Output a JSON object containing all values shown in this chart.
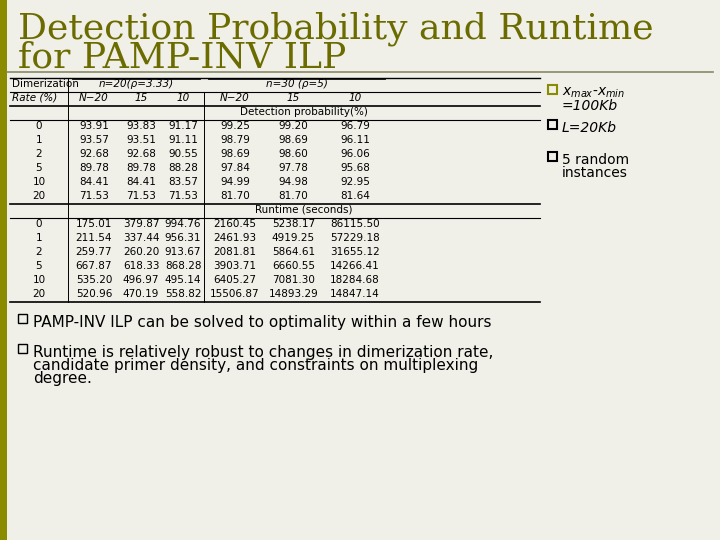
{
  "title_line1": "Detection Probability and Runtime",
  "title_line2": "for PAMP-INV ILP",
  "title_color": "#6b6b00",
  "bg_color": "#f0f0e8",
  "detection_section_label": "Detection probability(%)",
  "runtime_section_label": "Runtime (seconds)",
  "dimerization_rates": [
    0,
    1,
    2,
    5,
    10,
    20
  ],
  "detection_data": [
    [
      93.91,
      93.83,
      91.17,
      99.25,
      99.2,
      96.79
    ],
    [
      93.57,
      93.51,
      91.11,
      98.79,
      98.69,
      96.11
    ],
    [
      92.68,
      92.68,
      90.55,
      98.69,
      98.6,
      96.06
    ],
    [
      89.78,
      89.78,
      88.28,
      97.84,
      97.78,
      95.68
    ],
    [
      84.41,
      84.41,
      83.57,
      94.99,
      94.98,
      92.95
    ],
    [
      71.53,
      71.53,
      71.53,
      81.7,
      81.7,
      81.64
    ]
  ],
  "runtime_data": [
    [
      175.01,
      379.87,
      994.76,
      2160.45,
      5238.17,
      86115.5
    ],
    [
      211.54,
      337.44,
      956.31,
      2461.93,
      4919.25,
      57229.18
    ],
    [
      259.77,
      260.2,
      913.67,
      2081.81,
      5864.61,
      31655.12
    ],
    [
      667.87,
      618.33,
      868.28,
      3903.71,
      6660.55,
      14266.41
    ],
    [
      535.2,
      496.97,
      495.14,
      6405.27,
      7081.3,
      18284.68
    ],
    [
      520.96,
      470.19,
      558.82,
      15506.87,
      14893.29,
      14847.14
    ]
  ],
  "bullet_right_color": "#8b8b00",
  "bullet_bottom_1": "PAMP-INV ILP can be solved to optimality within a few hours",
  "bullet_bottom_2_lines": [
    "Runtime is relatively robust to changes in dimerization rate,",
    "candidate primer density, and constraints on multiplexing",
    "degree."
  ],
  "font_size_title": 26,
  "font_size_table": 7.5,
  "font_size_right_bullet": 10,
  "font_size_bottom_bullet": 11
}
